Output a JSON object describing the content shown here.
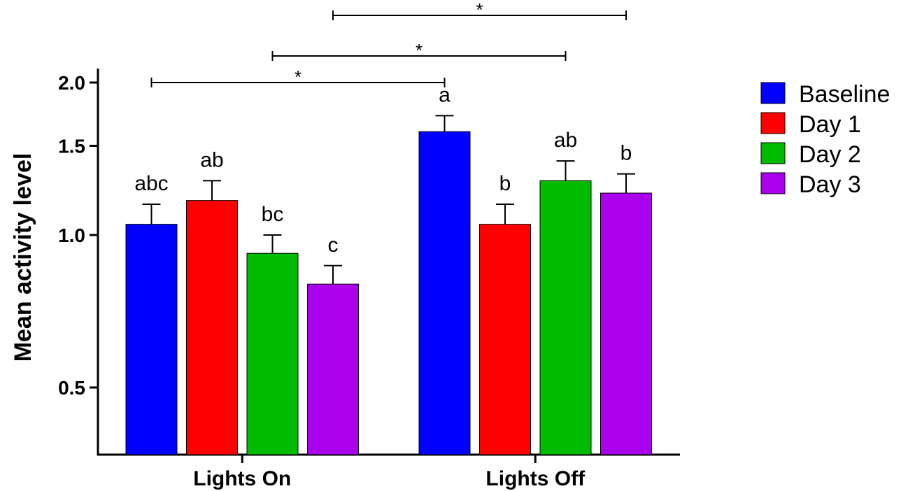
{
  "chart_data": {
    "type": "bar",
    "ylabel": "Mean activity level",
    "xlabel": "",
    "yscale": "log",
    "ylim": [
      0.3,
      2.1
    ],
    "yticks": [
      0.5,
      1.0,
      1.5,
      2.0
    ],
    "ytick_labels": [
      "0.5",
      "1.0",
      "1.5",
      "2.0"
    ],
    "categories": [
      "Lights On",
      "Lights Off"
    ],
    "series": [
      {
        "name": "Baseline",
        "color": "#0000ff",
        "values": [
          1.05,
          1.6
        ],
        "errors": [
          0.1,
          0.12
        ],
        "letters": [
          "abc",
          "a"
        ]
      },
      {
        "name": "Day 1",
        "color": "#ff0000",
        "values": [
          1.17,
          1.05
        ],
        "errors": [
          0.11,
          0.1
        ],
        "letters": [
          "ab",
          "b"
        ]
      },
      {
        "name": "Day 2",
        "color": "#00bb00",
        "values": [
          0.92,
          1.28
        ],
        "errors": [
          0.08,
          0.12
        ],
        "letters": [
          "bc",
          "ab"
        ]
      },
      {
        "name": "Day 3",
        "color": "#aa00ee",
        "values": [
          0.8,
          1.21
        ],
        "errors": [
          0.07,
          0.11
        ],
        "letters": [
          "c",
          "b"
        ]
      }
    ],
    "significance": [
      {
        "from": {
          "category": 0,
          "series": 0
        },
        "to": {
          "category": 1,
          "series": 0
        },
        "label": "*"
      },
      {
        "from": {
          "category": 0,
          "series": 2
        },
        "to": {
          "category": 1,
          "series": 2
        },
        "label": "*"
      },
      {
        "from": {
          "category": 0,
          "series": 3
        },
        "to": {
          "category": 1,
          "series": 3
        },
        "label": "*"
      }
    ],
    "legend_position": "top-right",
    "grid": false
  }
}
